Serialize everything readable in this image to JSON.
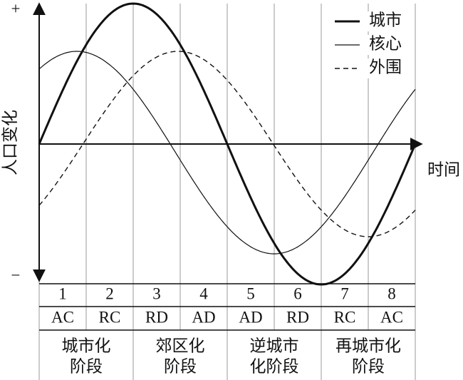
{
  "axis": {
    "y_label": "人口变化",
    "y_top": "+",
    "y_bottom": "−",
    "x_label": "时间"
  },
  "legend": [
    {
      "label": "城市"
    },
    {
      "label": "核心"
    },
    {
      "label": "外围"
    }
  ],
  "stages": [
    {
      "number": "1",
      "code": "AC"
    },
    {
      "number": "2",
      "code": "RC"
    },
    {
      "number": "3",
      "code": "RD"
    },
    {
      "number": "4",
      "code": "AD"
    },
    {
      "number": "5",
      "code": "AD"
    },
    {
      "number": "6",
      "code": "RD"
    },
    {
      "number": "7",
      "code": "RC"
    },
    {
      "number": "8",
      "code": "AC"
    }
  ],
  "phases": [
    {
      "line1": "城市化",
      "line2": "阶段"
    },
    {
      "line1": "郊区化",
      "line2": "阶段"
    },
    {
      "line1": "逆城市",
      "line2": "化阶段"
    },
    {
      "line1": "再城市化",
      "line2": "阶段"
    }
  ]
}
